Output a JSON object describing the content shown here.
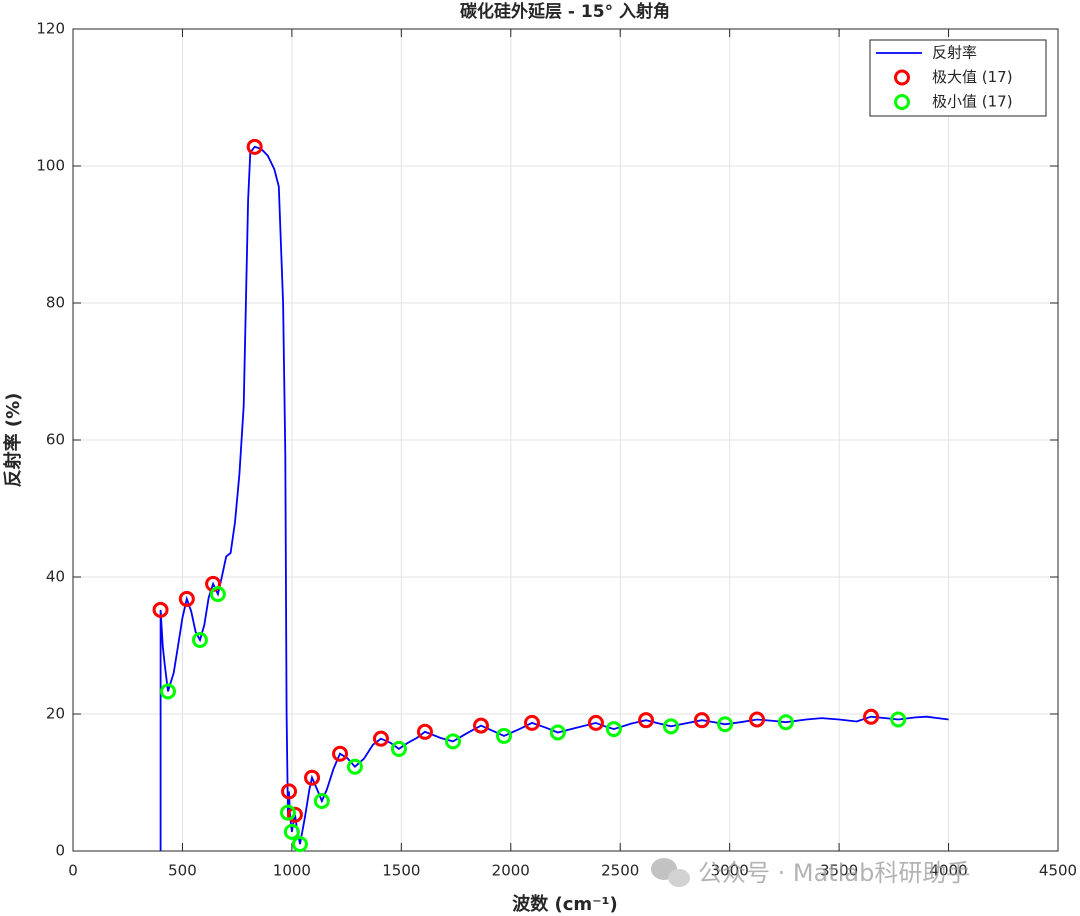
{
  "chart_data": {
    "type": "line",
    "title": "碳化硅外延层 - 15° 入射角",
    "xlabel": "波数 (cm⁻¹)",
    "ylabel": "反射率 (%)",
    "watermark": "公众号 · Matlab科研助手",
    "xlim": [
      0,
      4500
    ],
    "xticks": [
      0,
      500,
      1000,
      1500,
      2000,
      2500,
      3000,
      3500,
      4000,
      4500
    ],
    "ylim": [
      0,
      120
    ],
    "yticks": [
      0,
      20,
      40,
      60,
      80,
      100,
      120
    ],
    "grid": true,
    "legend": "upper right",
    "series": [
      {
        "name": "反射率",
        "type": "line",
        "color": "#0000ff",
        "x": [
          400,
          400,
          410,
          420,
          434,
          460,
          480,
          500,
          520,
          540,
          560,
          580,
          600,
          620,
          640,
          662,
          680,
          700,
          720,
          740,
          760,
          780,
          790,
          800,
          810,
          830,
          860,
          890,
          920,
          940,
          960,
          970,
          976,
          982,
          987,
          992,
          1000,
          1006,
          1014,
          1022,
          1037,
          1060,
          1080,
          1092,
          1115,
          1137,
          1160,
          1190,
          1220,
          1255,
          1288,
          1330,
          1370,
          1407,
          1450,
          1489,
          1530,
          1570,
          1608,
          1680,
          1736,
          1800,
          1864,
          1920,
          1969,
          2040,
          2097,
          2160,
          2215,
          2300,
          2389,
          2430,
          2471,
          2550,
          2618,
          2680,
          2732,
          2810,
          2873,
          2930,
          2979,
          3050,
          3125,
          3200,
          3257,
          3350,
          3420,
          3500,
          3580,
          3646,
          3710,
          3770,
          3850,
          3900,
          3950,
          4000
        ],
        "values": [
          0,
          35.2,
          30,
          27,
          23.3,
          26,
          30,
          34,
          36.8,
          35,
          32,
          30.8,
          33,
          37,
          39,
          37.5,
          40,
          43,
          43.5,
          48,
          55,
          65,
          80,
          95,
          102,
          102.8,
          102.5,
          101.5,
          99.5,
          97,
          80,
          58,
          20,
          5.6,
          8.7,
          5,
          2.8,
          4,
          5.3,
          3.5,
          1.0,
          5,
          9,
          10.7,
          9,
          7.3,
          9,
          12,
          14.2,
          13.5,
          12.3,
          13.5,
          15.5,
          16.4,
          15.8,
          14.9,
          15.8,
          16.5,
          17.4,
          16.5,
          16.0,
          17.2,
          18.3,
          17.5,
          16.8,
          17.8,
          18.7,
          18,
          17.3,
          18,
          18.7,
          18.2,
          17.8,
          18.6,
          19.1,
          18.6,
          18.2,
          18.7,
          19.1,
          18.8,
          18.5,
          18.8,
          19.2,
          19,
          18.8,
          19.2,
          19.4,
          19.2,
          18.9,
          19.6,
          19.4,
          19.2,
          19.5,
          19.6,
          19.4,
          19.2
        ]
      },
      {
        "name": "极大值 (17)",
        "type": "scatter",
        "color": "#ff0000",
        "x": [
          400,
          520,
          640,
          830,
          987,
          1014,
          1092,
          1220,
          1407,
          1608,
          1864,
          2097,
          2389,
          2618,
          2873,
          3125,
          3646
        ],
        "values": [
          35.2,
          36.8,
          39,
          102.8,
          8.7,
          5.3,
          10.7,
          14.2,
          16.4,
          17.4,
          18.3,
          18.7,
          18.7,
          19.1,
          19.1,
          19.2,
          19.6
        ]
      },
      {
        "name": "极小值 (17)",
        "type": "scatter",
        "color": "#00ff00",
        "x": [
          434,
          580,
          662,
          982,
          1000,
          1037,
          1137,
          1288,
          1489,
          1736,
          1969,
          2215,
          2471,
          2732,
          2979,
          3257,
          3770
        ],
        "values": [
          23.3,
          30.8,
          37.5,
          5.6,
          2.8,
          1.0,
          7.3,
          12.3,
          14.9,
          16.0,
          16.8,
          17.3,
          17.8,
          18.2,
          18.5,
          18.8,
          19.2
        ]
      }
    ]
  }
}
